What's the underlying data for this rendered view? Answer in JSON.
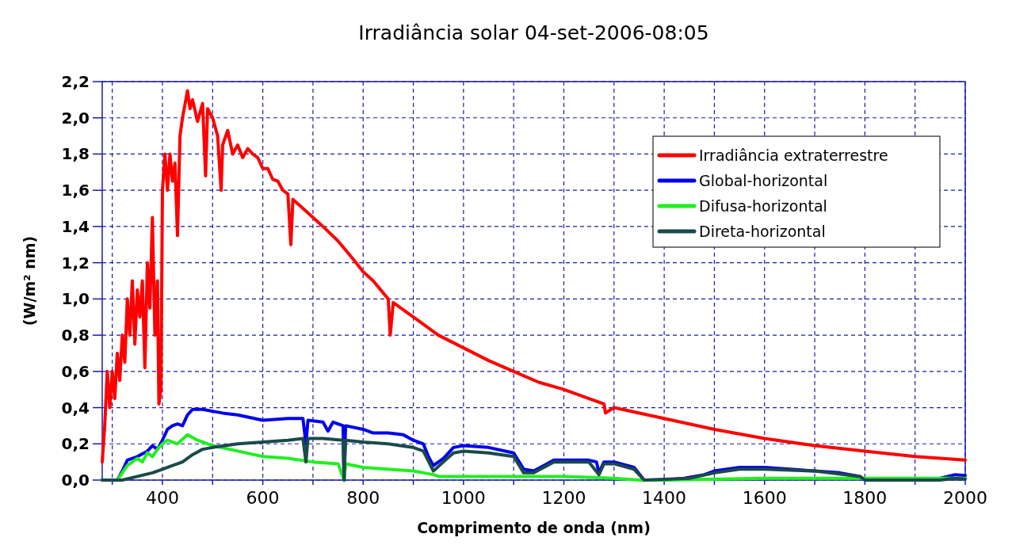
{
  "chart_data": {
    "type": "line",
    "title": "Irradiância solar 04-set-2006-08:05",
    "xlabel": "Comprimento de onda (nm)",
    "ylabel": "(W/m² nm)",
    "xlim": [
      280,
      2000
    ],
    "xticks": [
      {
        "value": 300,
        "label": null
      },
      400,
      {
        "value": 500,
        "label": null
      },
      600,
      {
        "value": 700,
        "label": null
      },
      800,
      {
        "value": 900,
        "label": null
      },
      1000,
      {
        "value": 1100,
        "label": null
      },
      1200,
      {
        "value": 1300,
        "label": null
      },
      1400,
      {
        "value": 1500,
        "label": null
      },
      1600,
      {
        "value": 1700,
        "label": null
      },
      1800,
      {
        "value": 1900,
        "label": null
      },
      2000
    ],
    "ylim": [
      0,
      2.2
    ],
    "yticks": [
      {
        "value": 0,
        "label": "0,0"
      },
      {
        "value": 0.2,
        "label": "0,2"
      },
      {
        "value": 0.4,
        "label": "0,4"
      },
      {
        "value": 0.6,
        "label": "0,6"
      },
      {
        "value": 0.8,
        "label": "0,8"
      },
      {
        "value": 1.0,
        "label": "1,0"
      },
      {
        "value": 1.2,
        "label": "1,2"
      },
      {
        "value": 1.4,
        "label": "1,4"
      },
      {
        "value": 1.6,
        "label": "1,6"
      },
      {
        "value": 1.8,
        "label": "1,8"
      },
      {
        "value": 2.0,
        "label": "2,0"
      },
      {
        "value": 2.2,
        "label": "2,2"
      }
    ],
    "grid": true,
    "legend": "top right",
    "marker": "none",
    "line_style": "solid",
    "series": [
      {
        "name": "Irradiância extraterrestre",
        "color": "#ff0000",
        "x": [
          280,
          285,
          290,
          295,
          300,
          305,
          310,
          315,
          320,
          325,
          330,
          335,
          340,
          345,
          350,
          355,
          360,
          365,
          370,
          375,
          380,
          385,
          390,
          393,
          397,
          400,
          405,
          410,
          415,
          420,
          425,
          430,
          435,
          440,
          450,
          455,
          460,
          470,
          480,
          486,
          490,
          500,
          510,
          517,
          520,
          530,
          540,
          550,
          560,
          570,
          580,
          590,
          600,
          610,
          620,
          630,
          640,
          650,
          656,
          660,
          680,
          700,
          720,
          750,
          780,
          800,
          820,
          850,
          854,
          860,
          900,
          950,
          1000,
          1050,
          1100,
          1150,
          1200,
          1250,
          1280,
          1283,
          1300,
          1400,
          1500,
          1600,
          1700,
          1800,
          1900,
          2000
        ],
        "values": [
          0.1,
          0.3,
          0.6,
          0.4,
          0.6,
          0.45,
          0.7,
          0.55,
          0.8,
          0.65,
          1.0,
          0.8,
          1.1,
          0.75,
          1.05,
          0.9,
          1.1,
          0.62,
          1.2,
          0.95,
          1.45,
          0.8,
          1.1,
          0.42,
          0.5,
          1.6,
          1.8,
          1.6,
          1.8,
          1.65,
          1.75,
          1.35,
          1.9,
          2.0,
          2.15,
          2.05,
          2.1,
          1.98,
          2.08,
          1.68,
          2.05,
          2.0,
          1.9,
          1.6,
          1.85,
          1.93,
          1.8,
          1.85,
          1.78,
          1.83,
          1.8,
          1.78,
          1.72,
          1.72,
          1.66,
          1.65,
          1.6,
          1.58,
          1.3,
          1.55,
          1.5,
          1.45,
          1.4,
          1.32,
          1.22,
          1.15,
          1.1,
          1.0,
          0.8,
          0.98,
          0.9,
          0.8,
          0.73,
          0.66,
          0.6,
          0.54,
          0.5,
          0.45,
          0.42,
          0.37,
          0.4,
          0.34,
          0.28,
          0.23,
          0.19,
          0.16,
          0.13,
          0.11
        ]
      },
      {
        "name": "Global-horizontal",
        "color": "#0000ee",
        "x": [
          280,
          310,
          320,
          330,
          350,
          370,
          380,
          390,
          400,
          410,
          420,
          430,
          440,
          450,
          460,
          480,
          500,
          520,
          550,
          600,
          650,
          680,
          686,
          690,
          720,
          730,
          740,
          760,
          762,
          765,
          800,
          820,
          850,
          880,
          900,
          920,
          930,
          940,
          960,
          980,
          1000,
          1050,
          1100,
          1120,
          1140,
          1160,
          1180,
          1200,
          1250,
          1265,
          1270,
          1280,
          1300,
          1340,
          1360,
          1400,
          1440,
          1480,
          1500,
          1550,
          1600,
          1650,
          1700,
          1750,
          1790,
          1800,
          1950,
          1980,
          2000
        ],
        "values": [
          0,
          0,
          0.05,
          0.11,
          0.13,
          0.16,
          0.19,
          0.17,
          0.22,
          0.28,
          0.3,
          0.31,
          0.3,
          0.36,
          0.39,
          0.39,
          0.38,
          0.37,
          0.36,
          0.33,
          0.34,
          0.34,
          0.2,
          0.33,
          0.32,
          0.27,
          0.32,
          0.3,
          0.0,
          0.3,
          0.28,
          0.26,
          0.26,
          0.25,
          0.22,
          0.2,
          0.13,
          0.08,
          0.12,
          0.18,
          0.19,
          0.18,
          0.15,
          0.06,
          0.05,
          0.08,
          0.11,
          0.11,
          0.11,
          0.1,
          0.04,
          0.1,
          0.1,
          0.07,
          0.0,
          0.0,
          0.01,
          0.03,
          0.05,
          0.07,
          0.07,
          0.06,
          0.05,
          0.04,
          0.02,
          0.0,
          0.01,
          0.03,
          0.025
        ]
      },
      {
        "name": "Difusa-horizontal",
        "color": "#22ee22",
        "x": [
          280,
          310,
          330,
          350,
          360,
          370,
          380,
          390,
          400,
          410,
          430,
          450,
          470,
          500,
          550,
          600,
          650,
          700,
          750,
          762,
          765,
          800,
          900,
          940,
          950,
          1000,
          1100,
          1200,
          1300,
          1350,
          1400,
          1600,
          1800,
          1900,
          2000
        ],
        "values": [
          0,
          0,
          0.08,
          0.12,
          0.1,
          0.15,
          0.13,
          0.17,
          0.2,
          0.22,
          0.2,
          0.25,
          0.22,
          0.19,
          0.16,
          0.13,
          0.12,
          0.1,
          0.09,
          0.0,
          0.09,
          0.07,
          0.05,
          0.03,
          0.02,
          0.02,
          0.02,
          0.02,
          0.01,
          0,
          0,
          0.01,
          0.01,
          0.01,
          0.01
        ]
      },
      {
        "name": "Direta-horizontal",
        "color": "#1a4a4a",
        "x": [
          280,
          320,
          350,
          380,
          400,
          420,
          440,
          460,
          480,
          500,
          550,
          600,
          650,
          680,
          686,
          690,
          720,
          760,
          762,
          765,
          800,
          850,
          900,
          920,
          940,
          960,
          980,
          1000,
          1050,
          1100,
          1120,
          1140,
          1160,
          1180,
          1250,
          1270,
          1280,
          1300,
          1340,
          1360,
          1450,
          1500,
          1550,
          1600,
          1700,
          1790,
          1800,
          1950,
          1980,
          2000
        ],
        "values": [
          0,
          0,
          0.02,
          0.04,
          0.06,
          0.08,
          0.1,
          0.14,
          0.17,
          0.18,
          0.2,
          0.21,
          0.22,
          0.23,
          0.1,
          0.23,
          0.23,
          0.22,
          0.0,
          0.22,
          0.21,
          0.2,
          0.18,
          0.16,
          0.05,
          0.1,
          0.15,
          0.16,
          0.15,
          0.13,
          0.04,
          0.04,
          0.07,
          0.1,
          0.1,
          0.03,
          0.09,
          0.09,
          0.06,
          0,
          0.01,
          0.04,
          0.06,
          0.06,
          0.05,
          0.02,
          0,
          0,
          0.01,
          0.005
        ]
      }
    ]
  }
}
